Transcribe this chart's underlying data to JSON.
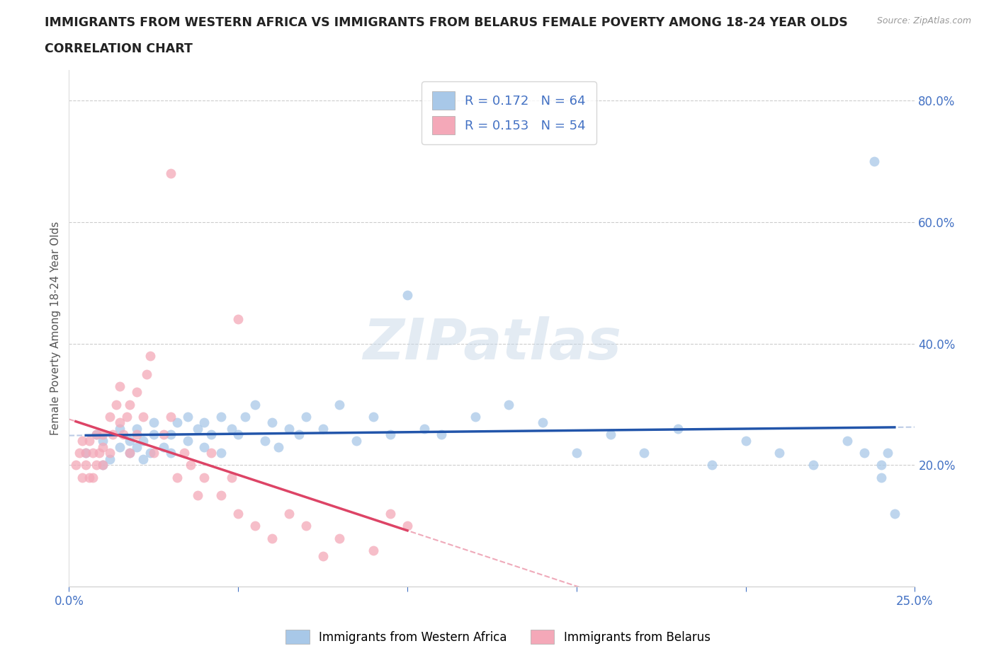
{
  "title_line1": "IMMIGRANTS FROM WESTERN AFRICA VS IMMIGRANTS FROM BELARUS FEMALE POVERTY AMONG 18-24 YEAR OLDS",
  "title_line2": "CORRELATION CHART",
  "source": "Source: ZipAtlas.com",
  "ylabel": "Female Poverty Among 18-24 Year Olds",
  "xlim": [
    0.0,
    0.25
  ],
  "ylim": [
    0.0,
    0.85
  ],
  "xticks": [
    0.0,
    0.05,
    0.1,
    0.15,
    0.2,
    0.25
  ],
  "yticks_right": [
    0.2,
    0.4,
    0.6,
    0.8
  ],
  "ytick_right_labels": [
    "20.0%",
    "40.0%",
    "60.0%",
    "80.0%"
  ],
  "r_blue": 0.172,
  "n_blue": 64,
  "r_pink": 0.153,
  "n_pink": 54,
  "blue_color": "#a8c8e8",
  "pink_color": "#f4a8b8",
  "blue_line_color": "#2255aa",
  "pink_line_color": "#dd4466",
  "watermark": "ZIPatlas",
  "legend_label_blue": "Immigrants from Western Africa",
  "legend_label_pink": "Immigrants from Belarus",
  "blue_scatter_x": [
    0.005,
    0.008,
    0.01,
    0.01,
    0.012,
    0.015,
    0.015,
    0.018,
    0.018,
    0.02,
    0.02,
    0.022,
    0.022,
    0.024,
    0.025,
    0.025,
    0.028,
    0.03,
    0.03,
    0.032,
    0.035,
    0.035,
    0.038,
    0.04,
    0.04,
    0.042,
    0.045,
    0.045,
    0.048,
    0.05,
    0.052,
    0.055,
    0.058,
    0.06,
    0.062,
    0.065,
    0.068,
    0.07,
    0.075,
    0.08,
    0.085,
    0.09,
    0.095,
    0.1,
    0.105,
    0.11,
    0.12,
    0.13,
    0.14,
    0.15,
    0.16,
    0.17,
    0.18,
    0.19,
    0.2,
    0.21,
    0.22,
    0.23,
    0.235,
    0.24,
    0.24,
    0.242,
    0.244,
    0.238
  ],
  "blue_scatter_y": [
    0.22,
    0.25,
    0.2,
    0.24,
    0.21,
    0.23,
    0.26,
    0.22,
    0.24,
    0.23,
    0.26,
    0.21,
    0.24,
    0.22,
    0.25,
    0.27,
    0.23,
    0.25,
    0.22,
    0.27,
    0.24,
    0.28,
    0.26,
    0.23,
    0.27,
    0.25,
    0.28,
    0.22,
    0.26,
    0.25,
    0.28,
    0.3,
    0.24,
    0.27,
    0.23,
    0.26,
    0.25,
    0.28,
    0.26,
    0.3,
    0.24,
    0.28,
    0.25,
    0.48,
    0.26,
    0.25,
    0.28,
    0.3,
    0.27,
    0.22,
    0.25,
    0.22,
    0.26,
    0.2,
    0.24,
    0.22,
    0.2,
    0.24,
    0.22,
    0.2,
    0.18,
    0.22,
    0.12,
    0.7
  ],
  "pink_scatter_x": [
    0.002,
    0.003,
    0.004,
    0.004,
    0.005,
    0.005,
    0.006,
    0.006,
    0.007,
    0.007,
    0.008,
    0.008,
    0.009,
    0.01,
    0.01,
    0.01,
    0.012,
    0.012,
    0.013,
    0.014,
    0.015,
    0.015,
    0.016,
    0.017,
    0.018,
    0.018,
    0.02,
    0.02,
    0.022,
    0.023,
    0.024,
    0.025,
    0.028,
    0.03,
    0.032,
    0.034,
    0.036,
    0.038,
    0.04,
    0.042,
    0.045,
    0.048,
    0.05,
    0.055,
    0.06,
    0.065,
    0.07,
    0.075,
    0.08,
    0.09,
    0.095,
    0.1,
    0.05,
    0.03
  ],
  "pink_scatter_y": [
    0.2,
    0.22,
    0.18,
    0.24,
    0.2,
    0.22,
    0.18,
    0.24,
    0.22,
    0.18,
    0.25,
    0.2,
    0.22,
    0.2,
    0.23,
    0.25,
    0.28,
    0.22,
    0.25,
    0.3,
    0.27,
    0.33,
    0.25,
    0.28,
    0.22,
    0.3,
    0.32,
    0.25,
    0.28,
    0.35,
    0.38,
    0.22,
    0.25,
    0.28,
    0.18,
    0.22,
    0.2,
    0.15,
    0.18,
    0.22,
    0.15,
    0.18,
    0.12,
    0.1,
    0.08,
    0.12,
    0.1,
    0.05,
    0.08,
    0.06,
    0.12,
    0.1,
    0.44,
    0.68
  ]
}
